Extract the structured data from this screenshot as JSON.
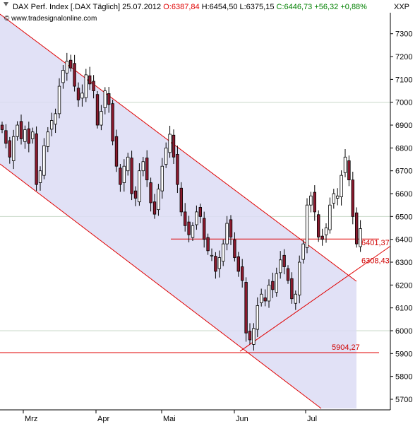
{
  "header": {
    "symbol": "DAX Perf. Index [.DAX",
    "period": "Täglich]",
    "date": "25.07.2012",
    "open": "O:6387,84",
    "high": "H:6454,50",
    "low": "L:6375,15",
    "close": "C:6446,73",
    "change": "+56,32",
    "change_pct": "+0,88%",
    "provider": "XXP",
    "watermark": "© www.tradesignalonline.com"
  },
  "colors": {
    "up_body": "#ffffff",
    "down_body": "#8b1a2e",
    "candle_outline": "#000000",
    "channel_fill": "#dcdcf5",
    "line_red": "#e00000",
    "grid": "#c8d8c8",
    "positive": "#008000",
    "negative": "#e00000"
  },
  "chart_data": {
    "type": "candlestick",
    "title": "DAX Perf. Index [.DAX Täglich]",
    "x_labels": [
      "Mrz",
      "Apr",
      "Mai",
      "Jun",
      "Jul"
    ],
    "y_ticks": [
      5700,
      5800,
      5900,
      6000,
      6100,
      6200,
      6300,
      6400,
      6500,
      6600,
      6700,
      6800,
      6900,
      7000,
      7100,
      7200,
      7300
    ],
    "ylim": [
      5660,
      7420
    ],
    "grid_levels": [
      6000,
      6500,
      7000
    ],
    "horizontal_lines": [
      {
        "value": 6401.37,
        "label": "6401,37"
      },
      {
        "value": 5904.27,
        "label": "5904,27"
      }
    ],
    "trendline_label": {
      "value": 6308.43,
      "label": "6308,43"
    },
    "candles_close": [
      6880,
      6820,
      6760,
      6850,
      6900,
      6840,
      6880,
      6820,
      6870,
      6640,
      6700,
      6810,
      6870,
      6920,
      6950,
      7070,
      7140,
      7180,
      7150,
      7070,
      7010,
      7040,
      7120,
      7080,
      7050,
      6900,
      6960,
      7050,
      6990,
      6830,
      6720,
      6640,
      6720,
      6760,
      6600,
      6580,
      6700,
      6740,
      6660,
      6560,
      6510,
      6620,
      6720,
      6800,
      6860,
      6760,
      6640,
      6520,
      6460,
      6420,
      6460,
      6520,
      6500,
      6400,
      6350,
      6330,
      6260,
      6320,
      6380,
      6470,
      6410,
      6320,
      6260,
      6220,
      5990,
      5960,
      6010,
      6110,
      6160,
      6130,
      6200,
      6180,
      6250,
      6310,
      6280,
      6220,
      6140,
      6160,
      6300,
      6380,
      6550,
      6590,
      6520,
      6410,
      6400,
      6450,
      6550,
      6600,
      6590,
      6680,
      6760,
      6660,
      6500,
      6380,
      6447
    ]
  }
}
